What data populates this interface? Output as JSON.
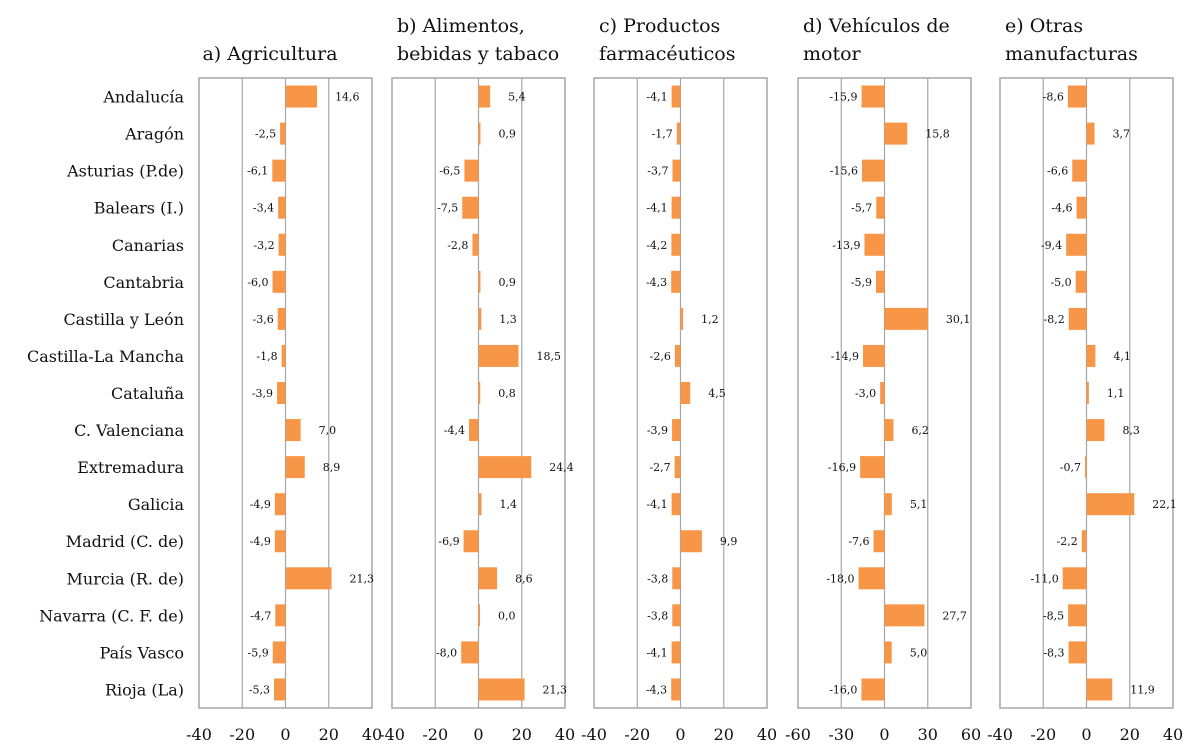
{
  "chart_data": {
    "type": "bar",
    "orientation": "horizontal",
    "categories": [
      "Andalucía",
      "Aragón",
      "Asturias (P.de)",
      "Balears (I.)",
      "Canarias",
      "Cantabria",
      "Castilla y León",
      "Castilla-La Mancha",
      "Cataluña",
      "C. Valenciana",
      "Extremadura",
      "Galicia",
      "Madrid (C. de)",
      "Murcia (R. de)",
      "Navarra (C. F. de)",
      "País Vasco",
      "Rioja (La)"
    ],
    "bar_color": "#F79646",
    "grid": true,
    "grid_color": "#A6A6A6",
    "panels": [
      {
        "title_lines": [
          "a) Agricultura"
        ],
        "xlim": [
          -40,
          40
        ],
        "ticks": [
          -40,
          -20,
          0,
          20,
          40
        ],
        "tick_labels": [
          "-40",
          "-20",
          "0",
          "20",
          "40"
        ],
        "values": [
          14.6,
          -2.5,
          -6.1,
          -3.4,
          -3.2,
          -6.0,
          -3.6,
          -1.8,
          -3.9,
          7.0,
          8.9,
          -4.9,
          -4.9,
          21.3,
          -4.7,
          -5.9,
          -5.3
        ],
        "labels": [
          "14,6",
          "-2,5",
          "-6,1",
          "-3,4",
          "-3,2",
          "-6,0",
          "-3,6",
          "-1,8",
          "-3,9",
          "7,0",
          "8,9",
          "-4,9",
          "-4,9",
          "21,3",
          "-4,7",
          "-5,9",
          "-5,3"
        ]
      },
      {
        "title_lines": [
          "b) Alimentos,",
          "bebidas y tabaco"
        ],
        "xlim": [
          -40,
          40
        ],
        "ticks": [
          -40,
          -20,
          0,
          20,
          40
        ],
        "tick_labels": [
          "-40",
          "-20",
          "0",
          "20",
          "40"
        ],
        "values": [
          5.4,
          0.9,
          -6.5,
          -7.5,
          -2.8,
          0.9,
          1.3,
          18.5,
          0.8,
          -4.4,
          24.4,
          1.4,
          -6.9,
          8.6,
          0.0,
          -8.0,
          21.3
        ],
        "labels": [
          "5,4",
          "0,9",
          "-6,5",
          "-7,5",
          "-2,8",
          "0,9",
          "1,3",
          "18,5",
          "0,8",
          "-4,4",
          "24,4",
          "1,4",
          "-6,9",
          "8,6",
          "0,0",
          "-8,0",
          "21,3"
        ]
      },
      {
        "title_lines": [
          "c) Productos",
          "farmacéuticos"
        ],
        "xlim": [
          -40,
          40
        ],
        "ticks": [
          -40,
          -20,
          0,
          20,
          40
        ],
        "tick_labels": [
          "-40",
          "-20",
          "0",
          "20",
          "40"
        ],
        "values": [
          -4.1,
          -1.7,
          -3.7,
          -4.1,
          -4.2,
          -4.3,
          1.2,
          -2.6,
          4.5,
          -3.9,
          -2.7,
          -4.1,
          9.9,
          -3.8,
          -3.8,
          -4.1,
          -4.3
        ],
        "labels": [
          "-4,1",
          "-1,7",
          "-3,7",
          "-4,1",
          "-4,2",
          "-4,3",
          "1,2",
          "-2,6",
          "4,5",
          "-3,9",
          "-2,7",
          "-4,1",
          "9,9",
          "-3,8",
          "-3,8",
          "-4,1",
          "-4,3"
        ]
      },
      {
        "title_lines": [
          "d) Vehículos de",
          "motor"
        ],
        "xlim": [
          -60,
          60
        ],
        "ticks": [
          -60,
          -30,
          0,
          30,
          60
        ],
        "tick_labels": [
          "-60",
          "-30",
          "0",
          "30",
          "60"
        ],
        "values": [
          -15.9,
          15.8,
          -15.6,
          -5.7,
          -13.9,
          -5.9,
          30.1,
          -14.9,
          -3.0,
          6.2,
          -16.9,
          5.1,
          -7.6,
          -18.0,
          27.7,
          5.0,
          -16.0
        ],
        "labels": [
          "-15,9",
          "15,8",
          "-15,6",
          "-5,7",
          "-13,9",
          "-5,9",
          "30,1",
          "-14,9",
          "-3,0",
          "6,2",
          "-16,9",
          "5,1",
          "-7,6",
          "-18,0",
          "27,7",
          "5,0",
          "-16,0"
        ]
      },
      {
        "title_lines": [
          "e) Otras",
          "manufacturas"
        ],
        "xlim": [
          -40,
          40
        ],
        "ticks": [
          -40,
          -20,
          0,
          20,
          40
        ],
        "tick_labels": [
          "-40",
          "-20",
          "0",
          "20",
          "40"
        ],
        "values": [
          -8.6,
          3.7,
          -6.6,
          -4.6,
          -9.4,
          -5.0,
          -8.2,
          4.1,
          1.1,
          8.3,
          -0.7,
          22.1,
          -2.2,
          -11.0,
          -8.5,
          -8.3,
          11.9
        ],
        "labels": [
          "-8,6",
          "3,7",
          "-6,6",
          "-4,6",
          "-9,4",
          "-5,0",
          "-8,2",
          "4,1",
          "1,1",
          "8,3",
          "-0,7",
          "22,1",
          "-2,2",
          "-11,0",
          "-8,5",
          "-8,3",
          "11,9"
        ]
      }
    ]
  }
}
